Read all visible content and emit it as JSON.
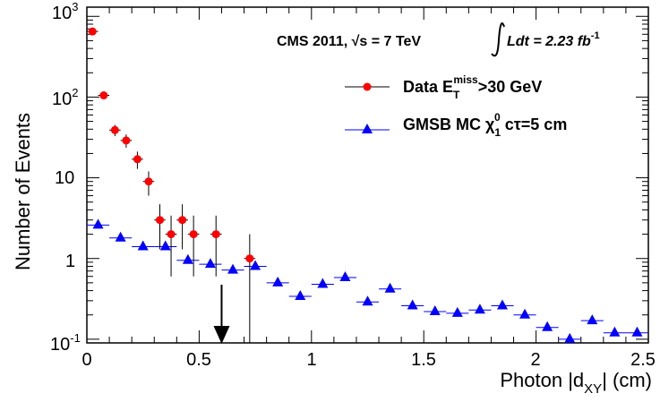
{
  "chart_data": {
    "type": "scatter",
    "title": "",
    "xlabel": "Photon |d_XY| (cm)",
    "ylabel": "Number of Events",
    "xlim": [
      0,
      2.5
    ],
    "ylim": [
      0.09,
      1300
    ],
    "yscale": "log",
    "x_ticks": [
      "0",
      "0.5",
      "1",
      "1.5",
      "2",
      "2.5"
    ],
    "y_ticks": [
      "10^-1",
      "1",
      "10",
      "10^2",
      "10^3"
    ],
    "grid": false,
    "legend_position": "top-right",
    "annotations": {
      "experiment": "CMS 2011, √s = 7 TeV",
      "luminosity_prefix": "Ldt = 2.23 fb",
      "luminosity_exp": "-1",
      "cut_arrow_x": 0.6
    },
    "series": [
      {
        "name": "Data E_T^miss>30 GeV",
        "color": "#ff0000",
        "marker": "circle",
        "x": [
          0.025,
          0.075,
          0.125,
          0.175,
          0.225,
          0.275,
          0.325,
          0.375,
          0.425,
          0.475,
          0.575,
          0.725
        ],
        "y": [
          650,
          105,
          39,
          29,
          17,
          9,
          3,
          2,
          3,
          2,
          2,
          1
        ],
        "yerr": [
          25,
          10,
          6.2,
          5.4,
          4.1,
          3.0,
          1.7,
          1.4,
          1.7,
          1.4,
          1.4,
          1.0
        ]
      },
      {
        "name": "GMSB MC χ1^0 cτ=5 cm",
        "color": "#0000ff",
        "marker": "triangle",
        "x": [
          0.05,
          0.15,
          0.25,
          0.35,
          0.45,
          0.55,
          0.65,
          0.75,
          0.85,
          0.95,
          1.05,
          1.15,
          1.25,
          1.35,
          1.45,
          1.55,
          1.65,
          1.75,
          1.85,
          1.95,
          2.05,
          2.15,
          2.25,
          2.35,
          2.45
        ],
        "y": [
          2.6,
          1.8,
          1.4,
          1.4,
          0.95,
          0.85,
          0.72,
          0.8,
          0.5,
          0.34,
          0.48,
          0.58,
          0.29,
          0.42,
          0.26,
          0.22,
          0.21,
          0.23,
          0.26,
          0.2,
          0.14,
          0.1,
          0.17,
          0.12,
          0.12
        ]
      }
    ]
  },
  "legend": {
    "data_label_main": "Data E",
    "data_label_sub": "T",
    "data_label_sup": "miss",
    "data_label_rest": ">30 GeV",
    "mc_label_main": "GMSB MC χ",
    "mc_label_sub": "1",
    "mc_label_sup": "0",
    "mc_label_rest": " cτ=5 cm"
  },
  "axes": {
    "x_title_main": "Photon |d",
    "x_title_sub": "XY",
    "x_title_rest": "| (cm)",
    "y_title": "Number of Events",
    "y_tick_base": "10",
    "y_tick_neg1_exp": "-1",
    "y_tick_one": "1",
    "y_tick_ten": "10",
    "y_tick_2_exp": "2",
    "y_tick_3_exp": "3",
    "x_tick_labels": [
      "0",
      "0.5",
      "1",
      "1.5",
      "2",
      "2.5"
    ]
  }
}
